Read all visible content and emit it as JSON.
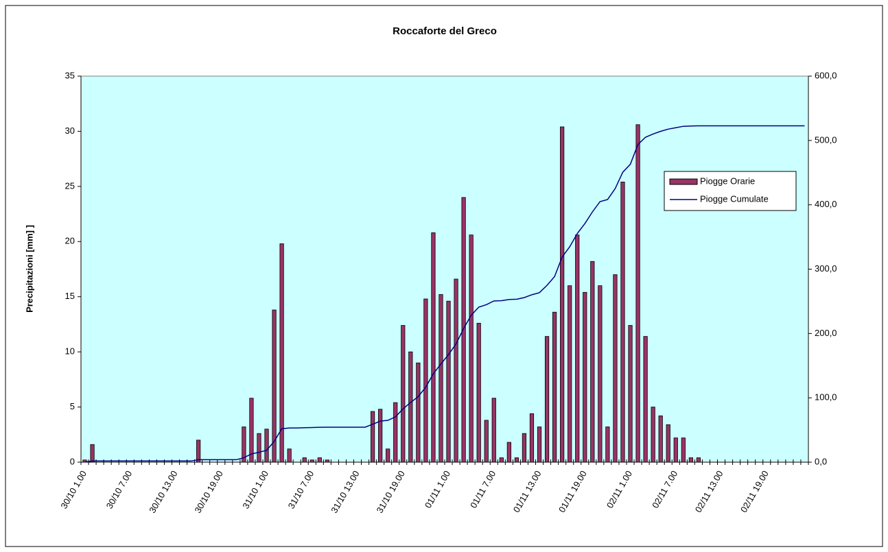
{
  "chart_data": {
    "type": "bar",
    "title": "Roccaforte del Greco",
    "y_label": "Precipitazioni [mm]  ]",
    "categories": [
      "30/10 1.00",
      null,
      null,
      null,
      null,
      null,
      "30/10 7.00",
      null,
      null,
      null,
      null,
      null,
      "30/10 13.00",
      null,
      null,
      null,
      null,
      null,
      "30/10 19.00",
      null,
      null,
      null,
      null,
      null,
      "31/10 1.00",
      null,
      null,
      null,
      null,
      null,
      "31/10 7.00",
      null,
      null,
      null,
      null,
      null,
      "31/10 13.00",
      null,
      null,
      null,
      null,
      null,
      "31/10 19.00",
      null,
      null,
      null,
      null,
      null,
      "01/11 1.00",
      null,
      null,
      null,
      null,
      null,
      "01/11 7.00",
      null,
      null,
      null,
      null,
      null,
      "01/11 13.00",
      null,
      null,
      null,
      null,
      null,
      "01/11 19.00",
      null,
      null,
      null,
      null,
      null,
      "02/11 1.00",
      null,
      null,
      null,
      null,
      null,
      "02/11 7.00",
      null,
      null,
      null,
      null,
      null,
      "02/11 13.00",
      null,
      null,
      null,
      null,
      null,
      "02/11 19.00",
      null,
      null,
      null,
      null,
      null
    ],
    "series": [
      {
        "name": "Piogge Orarie",
        "type": "bar",
        "color": "#993366",
        "values": [
          0.2,
          1.6,
          0,
          0,
          0,
          0,
          0,
          0,
          0,
          0,
          0,
          0,
          0,
          0,
          0,
          2.0,
          0,
          0,
          0,
          0,
          0,
          3.2,
          5.8,
          2.6,
          3.0,
          13.8,
          19.8,
          1.2,
          0,
          0.4,
          0.2,
          0.4,
          0.2,
          0,
          0,
          0,
          0,
          0,
          4.6,
          4.8,
          1.2,
          5.4,
          12.4,
          10.0,
          9.0,
          14.8,
          20.8,
          15.2,
          14.6,
          16.6,
          24.0,
          20.6,
          12.6,
          3.8,
          5.8,
          0.4,
          1.8,
          0.4,
          2.6,
          4.4,
          3.2,
          11.4,
          13.6,
          30.4,
          16.0,
          20.6,
          15.4,
          18.2,
          16.0,
          3.2,
          17.0,
          25.4,
          12.4,
          30.6,
          11.4,
          5.0,
          4.2,
          3.4,
          2.2,
          2.2,
          0.4,
          0.4,
          0,
          0,
          0,
          0,
          0,
          0,
          0,
          0,
          0,
          0,
          0,
          0,
          0,
          0
        ]
      },
      {
        "name": "Piogge Cumulate",
        "type": "line",
        "axis": "y2",
        "color": "#000080",
        "values": [
          0.2,
          1.8,
          1.8,
          1.8,
          1.8,
          1.8,
          1.8,
          1.8,
          1.8,
          1.8,
          1.8,
          1.8,
          1.8,
          1.8,
          1.8,
          3.8,
          3.8,
          3.8,
          3.8,
          3.8,
          3.8,
          7.0,
          12.8,
          15.4,
          18.4,
          32.2,
          52.0,
          53.2,
          53.2,
          53.6,
          53.8,
          54.2,
          54.4,
          54.4,
          54.4,
          54.4,
          54.4,
          54.4,
          59.0,
          63.8,
          65.0,
          70.4,
          82.8,
          92.8,
          101.8,
          116.6,
          137.4,
          152.6,
          167.2,
          183.8,
          207.8,
          228.4,
          241.0,
          244.8,
          250.6,
          251.0,
          252.8,
          253.2,
          255.8,
          260.2,
          263.4,
          274.8,
          288.4,
          318.8,
          334.8,
          355.4,
          370.8,
          389.0,
          405.0,
          408.2,
          425.2,
          450.6,
          463.0,
          493.6,
          505.0,
          510.0,
          514.2,
          517.6,
          519.8,
          522.0,
          522.4,
          522.8,
          522.8,
          522.8,
          522.8,
          522.8,
          522.8,
          522.8,
          522.8,
          522.8,
          522.8,
          522.8,
          522.8,
          522.8,
          522.8,
          522.8
        ]
      }
    ],
    "ylim": [
      0,
      35
    ],
    "yticks": [
      0,
      5,
      10,
      15,
      20,
      25,
      30,
      35
    ],
    "y2lim": [
      0,
      600
    ],
    "y2ticks": [
      {
        "value": 0,
        "label": "0,0"
      },
      {
        "value": 100,
        "label": "100,0"
      },
      {
        "value": 200,
        "label": "200,0"
      },
      {
        "value": 300,
        "label": "300,0"
      },
      {
        "value": 400,
        "label": "400,0"
      },
      {
        "value": 500,
        "label": "500,0"
      },
      {
        "value": 600,
        "label": "600,0"
      }
    ],
    "background": "#ccffff",
    "legend": "right"
  }
}
